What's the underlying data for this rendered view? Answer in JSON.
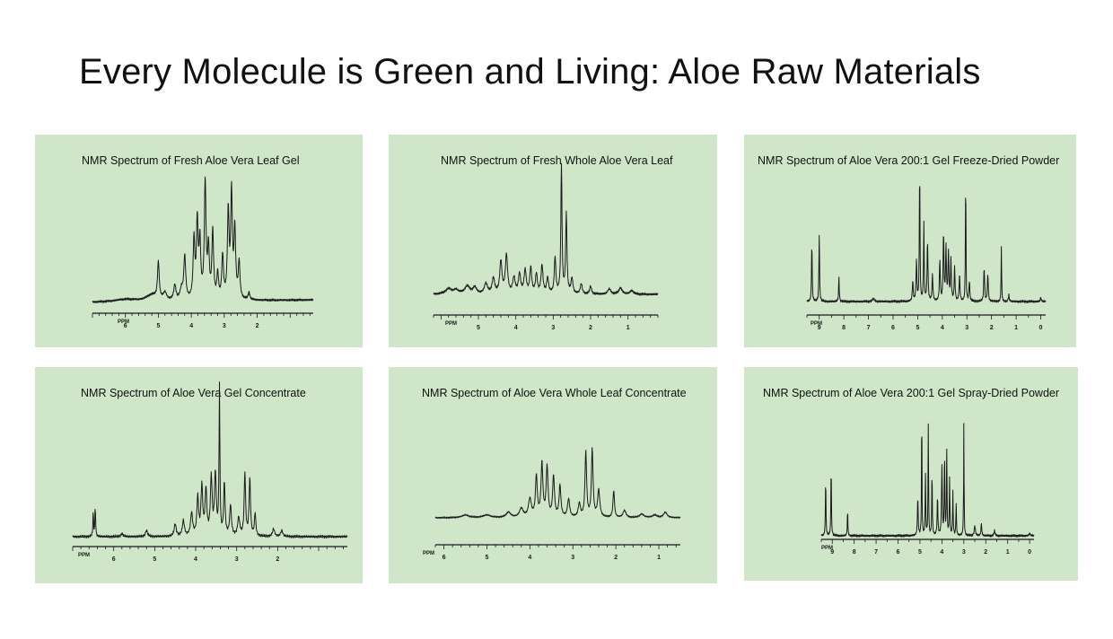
{
  "title": "Every Molecule is Green and Living: Aloe Raw Materials",
  "colors": {
    "panel_background": "#cfe6c8",
    "trace": "#1a1a1a",
    "text": "#111111"
  },
  "panels": [
    {
      "title": "NMR Spectrum of Fresh Aloe Vera Leaf Gel",
      "chart_data": {
        "type": "line",
        "axis_unit": "PPM",
        "axis_reversed": true,
        "xlim": [
          7,
          0.3
        ],
        "ticks": [
          6,
          5,
          4,
          3,
          2
        ],
        "peaks": [
          [
            6.0,
            0.02,
            0.4
          ],
          [
            5.2,
            0.05,
            0.2
          ],
          [
            5.0,
            0.3,
            0.03
          ],
          [
            4.8,
            0.06,
            0.06
          ],
          [
            4.5,
            0.12,
            0.04
          ],
          [
            4.3,
            0.08,
            0.05
          ],
          [
            4.2,
            0.35,
            0.035
          ],
          [
            3.92,
            0.48,
            0.03
          ],
          [
            3.82,
            0.62,
            0.03
          ],
          [
            3.74,
            0.45,
            0.03
          ],
          [
            3.58,
            0.95,
            0.03
          ],
          [
            3.48,
            0.4,
            0.03
          ],
          [
            3.35,
            0.55,
            0.03
          ],
          [
            3.2,
            0.2,
            0.03
          ],
          [
            3.05,
            0.35,
            0.03
          ],
          [
            2.88,
            0.7,
            0.03
          ],
          [
            2.78,
            0.85,
            0.03
          ],
          [
            2.68,
            0.55,
            0.03
          ],
          [
            2.55,
            0.3,
            0.03
          ],
          [
            2.25,
            0.06,
            0.03
          ]
        ],
        "baseline_slope": 0.02
      }
    },
    {
      "title": "NMR Spectrum of Fresh Whole Aloe Vera Leaf",
      "chart_data": {
        "type": "line",
        "axis_unit": "PPM",
        "axis_reversed": true,
        "xlim": [
          6.2,
          0.2
        ],
        "ticks": [
          5,
          4,
          3,
          2,
          1
        ],
        "peaks": [
          [
            5.8,
            0.04,
            0.1
          ],
          [
            5.6,
            0.03,
            0.08
          ],
          [
            5.3,
            0.06,
            0.08
          ],
          [
            5.1,
            0.05,
            0.06
          ],
          [
            4.8,
            0.08,
            0.05
          ],
          [
            4.6,
            0.12,
            0.04
          ],
          [
            4.4,
            0.25,
            0.035
          ],
          [
            4.25,
            0.3,
            0.035
          ],
          [
            4.05,
            0.12,
            0.04
          ],
          [
            3.9,
            0.15,
            0.035
          ],
          [
            3.75,
            0.18,
            0.035
          ],
          [
            3.6,
            0.2,
            0.03
          ],
          [
            3.45,
            0.15,
            0.03
          ],
          [
            3.3,
            0.22,
            0.03
          ],
          [
            3.15,
            0.12,
            0.03
          ],
          [
            2.95,
            0.28,
            0.025
          ],
          [
            2.78,
            1.0,
            0.018
          ],
          [
            2.65,
            0.62,
            0.02
          ],
          [
            2.5,
            0.12,
            0.03
          ],
          [
            2.25,
            0.08,
            0.03
          ],
          [
            2.0,
            0.06,
            0.03
          ],
          [
            1.5,
            0.04,
            0.05
          ],
          [
            1.2,
            0.05,
            0.05
          ],
          [
            0.9,
            0.03,
            0.05
          ]
        ],
        "baseline_slope": 0.0
      }
    },
    {
      "title": "NMR Spectrum of Aloe Vera 200:1 Gel Freeze-Dried Powder",
      "chart_data": {
        "type": "line",
        "axis_unit": "PPM",
        "axis_reversed": true,
        "xlim": [
          9.5,
          -0.2
        ],
        "ticks": [
          9,
          8,
          7,
          6,
          5,
          4,
          3,
          2,
          1,
          0
        ],
        "peaks": [
          [
            9.3,
            0.45,
            0.015
          ],
          [
            9.0,
            0.5,
            0.015
          ],
          [
            8.2,
            0.18,
            0.015
          ],
          [
            6.8,
            0.02,
            0.05
          ],
          [
            5.2,
            0.15,
            0.02
          ],
          [
            5.05,
            0.3,
            0.02
          ],
          [
            4.92,
            1.0,
            0.015
          ],
          [
            4.75,
            0.6,
            0.015
          ],
          [
            4.6,
            0.45,
            0.02
          ],
          [
            4.4,
            0.2,
            0.02
          ],
          [
            4.1,
            0.3,
            0.02
          ],
          [
            3.95,
            0.5,
            0.02
          ],
          [
            3.85,
            0.4,
            0.02
          ],
          [
            3.75,
            0.35,
            0.02
          ],
          [
            3.65,
            0.3,
            0.02
          ],
          [
            3.5,
            0.25,
            0.02
          ],
          [
            3.3,
            0.2,
            0.02
          ],
          [
            3.05,
            0.98,
            0.012
          ],
          [
            2.9,
            0.15,
            0.02
          ],
          [
            2.3,
            0.25,
            0.02
          ],
          [
            2.15,
            0.2,
            0.02
          ],
          [
            1.6,
            0.4,
            0.012
          ],
          [
            1.3,
            0.05,
            0.02
          ],
          [
            0.0,
            0.03,
            0.02
          ]
        ],
        "baseline_slope": 0.0
      }
    },
    {
      "title": "NMR Spectrum of Aloe Vera Gel Concentrate",
      "chart_data": {
        "type": "line",
        "axis_unit": "PPM",
        "axis_reversed": true,
        "xlim": [
          7,
          0.3
        ],
        "ticks": [
          6,
          5,
          4,
          3,
          2
        ],
        "peaks": [
          [
            6.5,
            0.16,
            0.01
          ],
          [
            6.45,
            0.2,
            0.01
          ],
          [
            5.8,
            0.02,
            0.03
          ],
          [
            5.2,
            0.04,
            0.03
          ],
          [
            4.5,
            0.08,
            0.03
          ],
          [
            4.3,
            0.1,
            0.03
          ],
          [
            4.1,
            0.15,
            0.03
          ],
          [
            3.95,
            0.25,
            0.025
          ],
          [
            3.85,
            0.32,
            0.025
          ],
          [
            3.75,
            0.3,
            0.025
          ],
          [
            3.62,
            0.38,
            0.025
          ],
          [
            3.52,
            0.4,
            0.025
          ],
          [
            3.42,
            1.0,
            0.012
          ],
          [
            3.3,
            0.35,
            0.02
          ],
          [
            3.15,
            0.2,
            0.025
          ],
          [
            2.95,
            0.12,
            0.03
          ],
          [
            2.8,
            0.42,
            0.02
          ],
          [
            2.68,
            0.38,
            0.02
          ],
          [
            2.55,
            0.15,
            0.02
          ],
          [
            2.1,
            0.05,
            0.03
          ],
          [
            1.9,
            0.04,
            0.03
          ]
        ],
        "baseline_slope": 0.0
      }
    },
    {
      "title": "NMR Spectrum of Aloe Vera Whole Leaf Concentrate",
      "chart_data": {
        "type": "line",
        "axis_unit": "PPM",
        "axis_reversed": true,
        "xlim": [
          6.2,
          0.5
        ],
        "ticks": [
          6,
          5,
          4,
          3,
          2,
          1
        ],
        "peaks": [
          [
            5.5,
            0.03,
            0.1
          ],
          [
            5.0,
            0.03,
            0.1
          ],
          [
            4.5,
            0.06,
            0.06
          ],
          [
            4.2,
            0.1,
            0.05
          ],
          [
            4.0,
            0.2,
            0.04
          ],
          [
            3.85,
            0.45,
            0.025
          ],
          [
            3.72,
            0.6,
            0.025
          ],
          [
            3.6,
            0.55,
            0.025
          ],
          [
            3.45,
            0.45,
            0.025
          ],
          [
            3.3,
            0.35,
            0.025
          ],
          [
            3.1,
            0.2,
            0.03
          ],
          [
            2.85,
            0.15,
            0.03
          ],
          [
            2.7,
            0.72,
            0.022
          ],
          [
            2.55,
            0.75,
            0.022
          ],
          [
            2.4,
            0.3,
            0.03
          ],
          [
            2.05,
            0.3,
            0.02
          ],
          [
            1.8,
            0.08,
            0.04
          ],
          [
            1.4,
            0.04,
            0.06
          ],
          [
            1.1,
            0.03,
            0.06
          ],
          [
            0.85,
            0.06,
            0.05
          ]
        ],
        "baseline_slope": 0.0
      }
    },
    {
      "title": "NMR Spectrum of Aloe Vera 200:1 Gel Spray-Dried Powder",
      "chart_data": {
        "type": "line",
        "axis_unit": "PPM",
        "axis_reversed": true,
        "xlim": [
          9.5,
          -0.2
        ],
        "ticks": [
          9,
          8,
          7,
          6,
          5,
          4,
          3,
          2,
          1,
          0
        ],
        "peaks": [
          [
            9.3,
            0.45,
            0.015
          ],
          [
            9.05,
            0.55,
            0.015
          ],
          [
            8.3,
            0.2,
            0.015
          ],
          [
            5.1,
            0.3,
            0.02
          ],
          [
            4.92,
            0.98,
            0.013
          ],
          [
            4.75,
            0.5,
            0.015
          ],
          [
            4.62,
            0.9,
            0.013
          ],
          [
            4.45,
            0.5,
            0.015
          ],
          [
            4.2,
            0.3,
            0.02
          ],
          [
            4.0,
            0.55,
            0.02
          ],
          [
            3.88,
            0.65,
            0.015
          ],
          [
            3.78,
            0.7,
            0.015
          ],
          [
            3.65,
            0.45,
            0.015
          ],
          [
            3.5,
            0.35,
            0.015
          ],
          [
            3.35,
            0.25,
            0.015
          ],
          [
            3.0,
            0.9,
            0.012
          ],
          [
            2.5,
            0.08,
            0.03
          ],
          [
            2.2,
            0.1,
            0.02
          ],
          [
            1.6,
            0.04,
            0.03
          ],
          [
            0.0,
            0.02,
            0.03
          ]
        ],
        "baseline_slope": 0.0
      }
    }
  ]
}
